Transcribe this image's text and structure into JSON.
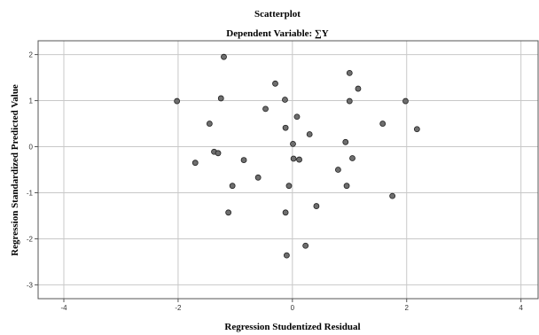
{
  "chart_data": {
    "type": "scatter",
    "title": "Scatterplot",
    "subtitle": "Dependent Variable: ∑Y",
    "xlabel": "Regression Studentized Residual",
    "ylabel": "Regression Standardized Predicted Value",
    "xlim": [
      -4.45,
      4.3
    ],
    "ylim": [
      -3.3,
      2.3
    ],
    "xticks": [
      -4,
      -2,
      0,
      2,
      4
    ],
    "yticks": [
      -3,
      -2,
      -1,
      0,
      1,
      2
    ],
    "grid": true,
    "points": [
      {
        "x": -1.2,
        "y": 1.95
      },
      {
        "x": -0.3,
        "y": 1.37
      },
      {
        "x": 1.0,
        "y": 1.6
      },
      {
        "x": 1.15,
        "y": 1.26
      },
      {
        "x": -1.25,
        "y": 1.05
      },
      {
        "x": -0.13,
        "y": 1.02
      },
      {
        "x": -2.02,
        "y": 0.99
      },
      {
        "x": 1.0,
        "y": 0.99
      },
      {
        "x": 1.98,
        "y": 0.99
      },
      {
        "x": -0.47,
        "y": 0.82
      },
      {
        "x": 0.08,
        "y": 0.65
      },
      {
        "x": -1.45,
        "y": 0.5
      },
      {
        "x": 1.58,
        "y": 0.5
      },
      {
        "x": -0.12,
        "y": 0.41
      },
      {
        "x": 2.18,
        "y": 0.38
      },
      {
        "x": 0.3,
        "y": 0.27
      },
      {
        "x": 0.01,
        "y": 0.06
      },
      {
        "x": 0.93,
        "y": 0.1
      },
      {
        "x": -1.37,
        "y": -0.11
      },
      {
        "x": -1.3,
        "y": -0.14
      },
      {
        "x": 1.05,
        "y": -0.25
      },
      {
        "x": 0.02,
        "y": -0.26
      },
      {
        "x": 0.12,
        "y": -0.28
      },
      {
        "x": -0.85,
        "y": -0.29
      },
      {
        "x": -1.7,
        "y": -0.35
      },
      {
        "x": 0.8,
        "y": -0.5
      },
      {
        "x": -0.6,
        "y": -0.67
      },
      {
        "x": -1.05,
        "y": -0.85
      },
      {
        "x": -0.06,
        "y": -0.85
      },
      {
        "x": 0.95,
        "y": -0.85
      },
      {
        "x": 1.75,
        "y": -1.07
      },
      {
        "x": 0.42,
        "y": -1.29
      },
      {
        "x": -1.12,
        "y": -1.43
      },
      {
        "x": -0.12,
        "y": -1.43
      },
      {
        "x": 0.23,
        "y": -2.15
      },
      {
        "x": -0.1,
        "y": -2.36
      }
    ]
  }
}
